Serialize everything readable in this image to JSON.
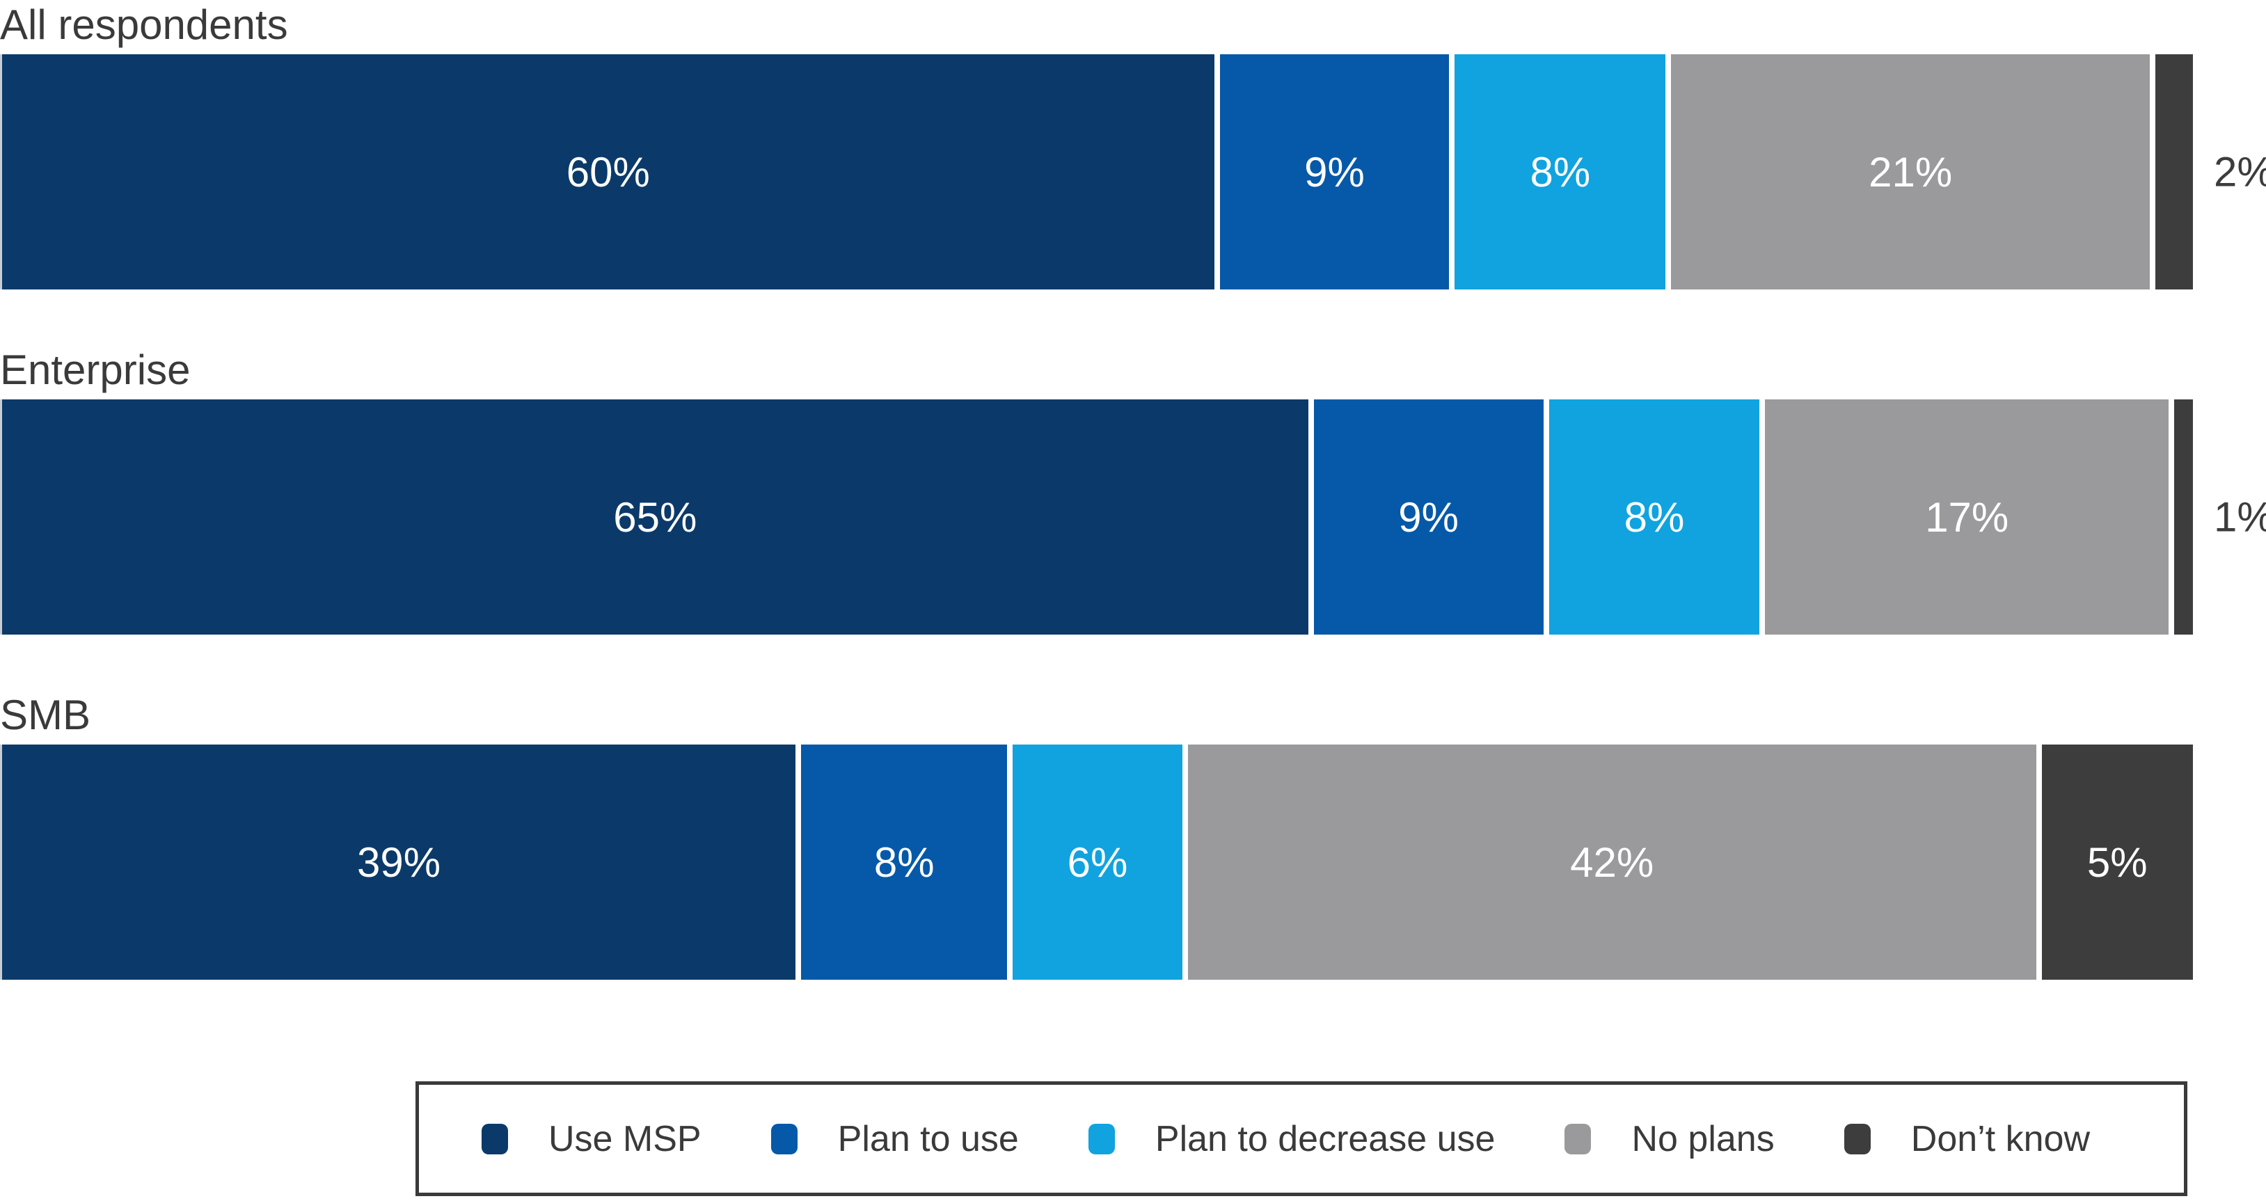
{
  "chart_data": {
    "type": "bar",
    "orientation": "horizontal_stacked",
    "title": "",
    "xlabel": "",
    "ylabel": "",
    "value_format": "percent",
    "xlim": [
      0,
      100
    ],
    "grid": false,
    "legend_position": "bottom-box",
    "categories": [
      "All respondents",
      "Enterprise",
      "SMB"
    ],
    "series": [
      {
        "name": "Use MSP",
        "color": "#0B3A6A",
        "values": [
          60,
          65,
          39
        ]
      },
      {
        "name": "Plan to use",
        "color": "#0659A8",
        "values": [
          9,
          9,
          8
        ]
      },
      {
        "name": "Plan to decrease use",
        "color": "#10A3DF",
        "values": [
          8,
          8,
          6
        ]
      },
      {
        "name": "No plans",
        "color": "#9A9A9C",
        "values": [
          21,
          17,
          42
        ]
      },
      {
        "name": "Don’t know",
        "color": "#3D3D3D",
        "values": [
          2,
          1,
          5
        ]
      }
    ],
    "bar_value_labels": [
      [
        "60%",
        "9%",
        "8%",
        "21%",
        "2%"
      ],
      [
        "65%",
        "9%",
        "8%",
        "17%",
        "1%"
      ],
      [
        "39%",
        "8%",
        "6%",
        "42%",
        "5%"
      ]
    ],
    "outside_labels": [
      "2%",
      "1%"
    ]
  },
  "style": {
    "category_label_color": "#3A3A3A",
    "inside_label_color": "#FFFFFF",
    "outside_label_color": "#3C3C3C",
    "legend_border_color": "#3A3A3A",
    "segment_gap_color": "#FFFFFF",
    "outside_label_threshold": 3
  }
}
